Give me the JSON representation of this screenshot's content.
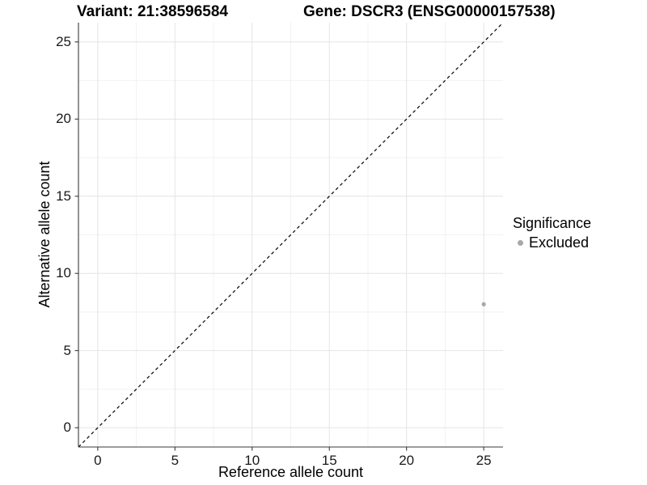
{
  "titles": {
    "variant": "Variant: 21:38596584",
    "gene": "Gene: DSCR3 (ENSG00000157538)"
  },
  "chart_data": {
    "type": "scatter",
    "title_left": "Variant: 21:38596584",
    "title_right": "Gene: DSCR3 (ENSG00000157538)",
    "xlabel": "Reference allele count",
    "ylabel": "Alternative allele count",
    "xlim": [
      -1.25,
      26.25
    ],
    "ylim": [
      -1.25,
      26.25
    ],
    "x_ticks": [
      0,
      5,
      10,
      15,
      20,
      25
    ],
    "y_ticks": [
      0,
      5,
      10,
      15,
      20,
      25
    ],
    "x_minor_ticks": [
      2.5,
      7.5,
      12.5,
      17.5,
      22.5
    ],
    "y_minor_ticks": [
      2.5,
      7.5,
      12.5,
      17.5,
      22.5
    ],
    "grid": true,
    "reference_line": {
      "kind": "identity",
      "style": "dashed",
      "color": "#000000"
    },
    "series": [
      {
        "name": "Excluded",
        "color": "#a8a8a8",
        "points": [
          {
            "x": 25,
            "y": 8
          }
        ]
      }
    ],
    "legend": {
      "title": "Significance",
      "position": "right",
      "items": [
        {
          "label": "Excluded",
          "color": "#a8a8a8"
        }
      ]
    }
  },
  "colors": {
    "axis_line": "#3a3a3a",
    "grid_major": "#e4e4e4",
    "grid_minor": "#f2f2f2",
    "tick_text": "#1a1a1a",
    "background": "#ffffff"
  }
}
